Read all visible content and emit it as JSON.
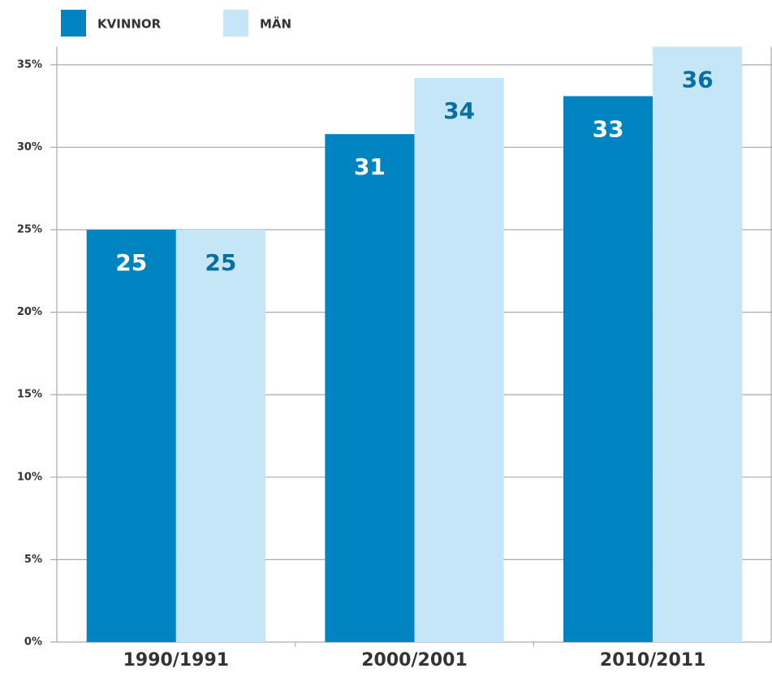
{
  "chart_data": {
    "type": "bar",
    "categories": [
      "1990/1991",
      "2000/2001",
      "2010/2011"
    ],
    "series": [
      {
        "name": "KVINNOR",
        "color": "#0083c1",
        "label_color": "#ffffff",
        "values": [
          25,
          30.8,
          33.1
        ],
        "value_labels": [
          "25",
          "31",
          "33"
        ]
      },
      {
        "name": "MÄN",
        "color": "#c5e6f6",
        "label_color": "#0a6e9f",
        "values": [
          25,
          34.2,
          36.1
        ],
        "value_labels": [
          "25",
          "34",
          "36"
        ]
      }
    ],
    "ylim": [
      0,
      36.1
    ],
    "yticks": [
      {
        "value": 0,
        "label": "0%"
      },
      {
        "value": 5,
        "label": "5%"
      },
      {
        "value": 10,
        "label": "10%"
      },
      {
        "value": 15,
        "label": "15%"
      },
      {
        "value": 20,
        "label": "20%"
      },
      {
        "value": 25,
        "label": "25%"
      },
      {
        "value": 30,
        "label": "30%"
      },
      {
        "value": 35,
        "label": "35%"
      }
    ],
    "grid": true
  }
}
